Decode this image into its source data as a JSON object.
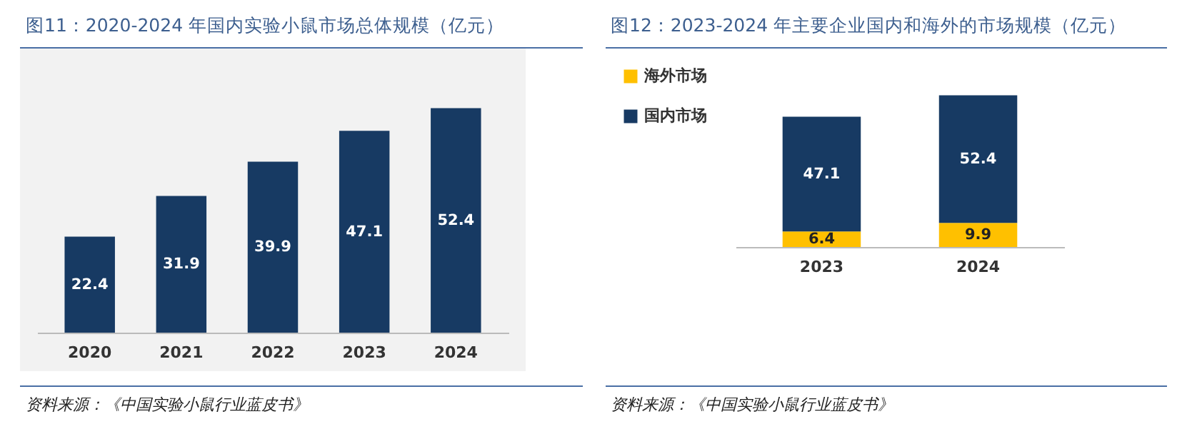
{
  "chart_data": [
    {
      "type": "bar",
      "title": "图11：2020-2024 年国内实验小鼠市场总体规模（亿元）",
      "categories": [
        "2020",
        "2021",
        "2022",
        "2023",
        "2024"
      ],
      "values": [
        22.4,
        31.9,
        39.9,
        47.1,
        52.4
      ],
      "color": "#173a63",
      "data_labels": true,
      "annotations": [
        "资料来源：《中国实验小鼠行业蓝皮书》"
      ]
    },
    {
      "type": "bar",
      "title": "图12：2023-2024 年主要企业国内和海外的市场规模（亿元）",
      "categories": [
        "2023",
        "2024"
      ],
      "stacked": true,
      "legend": "left",
      "data_labels": true,
      "series": [
        {
          "name": "海外市场",
          "color": "#ffc000",
          "values": [
            6.4,
            9.9
          ]
        },
        {
          "name": "国内市场",
          "color": "#173a63",
          "values": [
            47.1,
            52.4
          ]
        }
      ],
      "annotations": [
        "资料来源：《中国实验小鼠行业蓝皮书》"
      ]
    }
  ]
}
